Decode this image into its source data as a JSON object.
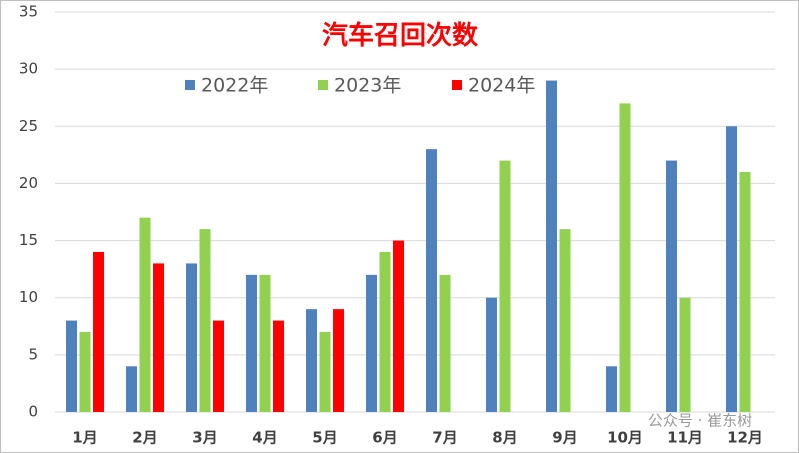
{
  "chart_data": {
    "type": "bar",
    "title": "汽车召回次数",
    "categories": [
      "1月",
      "2月",
      "3月",
      "4月",
      "5月",
      "6月",
      "7月",
      "8月",
      "9月",
      "10月",
      "11月",
      "12月"
    ],
    "series": [
      {
        "name": "2022年",
        "color": "#4f81bd",
        "values": [
          8,
          4,
          13,
          12,
          9,
          12,
          23,
          10,
          29,
          4,
          22,
          25
        ]
      },
      {
        "name": "2023年",
        "color": "#92d050",
        "values": [
          7,
          17,
          16,
          12,
          7,
          14,
          12,
          22,
          16,
          27,
          10,
          21
        ]
      },
      {
        "name": "2024年",
        "color": "#ff0000",
        "values": [
          14,
          13,
          8,
          8,
          9,
          15,
          null,
          null,
          null,
          null,
          null,
          null
        ]
      }
    ],
    "ylim": [
      0,
      35
    ],
    "yticks": [
      0,
      5,
      10,
      15,
      20,
      25,
      30,
      35
    ],
    "grid": true,
    "legend": "top",
    "watermark": "公众号 · 崔东树"
  }
}
